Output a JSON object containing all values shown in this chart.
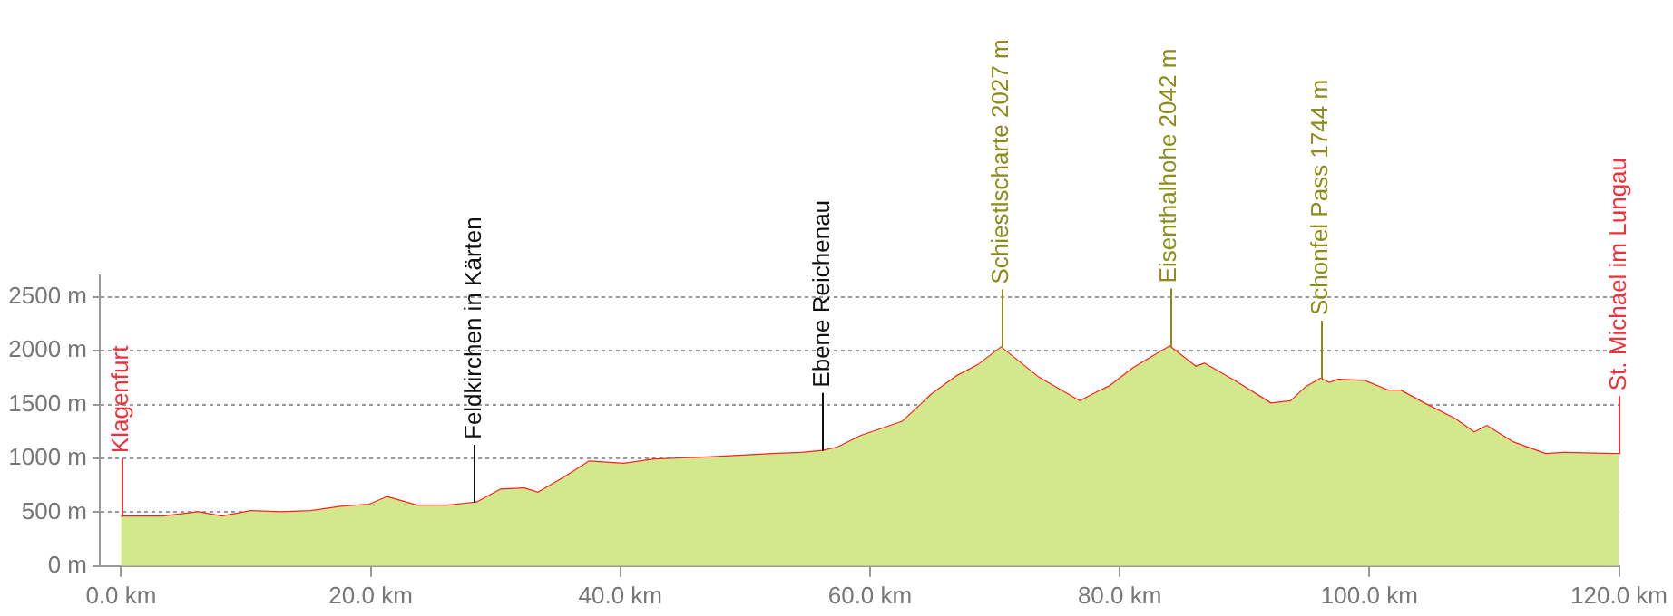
{
  "chart_data": {
    "type": "area",
    "x": [
      0,
      3.3,
      6.2,
      8.1,
      10.4,
      12.8,
      15.2,
      17.6,
      19.9,
      21.3,
      23.7,
      26.1,
      28.5,
      30.4,
      32.3,
      33.4,
      35.6,
      37.5,
      40.3,
      42.7,
      47.4,
      52.2,
      54.5,
      56.2,
      57.4,
      59.3,
      62.6,
      65.0,
      66.9,
      68.7,
      70.5,
      73.5,
      76.8,
      78.3,
      79.2,
      81.1,
      84.0,
      86.1,
      86.8,
      89.2,
      92.1,
      93.7,
      94.9,
      96.1,
      96.8,
      97.5,
      99.6,
      101.5,
      102.5,
      104.4,
      106.8,
      108.4,
      109.4,
      111.5,
      113.4,
      114.1,
      115.6,
      120.0
    ],
    "series": [
      {
        "type": "area",
        "color": "#d2e88c",
        "values": [
          460,
          460,
          500,
          460,
          510,
          500,
          510,
          550,
          570,
          640,
          560,
          560,
          590,
          710,
          720,
          680,
          830,
          970,
          950,
          990,
          1010,
          1040,
          1050,
          1070,
          1100,
          1210,
          1340,
          1600,
          1760,
          1870,
          2030,
          1750,
          1530,
          1620,
          1670,
          1840,
          2040,
          1850,
          1880,
          1720,
          1510,
          1530,
          1660,
          1740,
          1700,
          1730,
          1720,
          1630,
          1630,
          1510,
          1370,
          1240,
          1300,
          1150,
          1070,
          1040,
          1050,
          1040
        ]
      },
      {
        "type": "line",
        "color": "#ff2020",
        "values": [
          460,
          460,
          500,
          460,
          510,
          500,
          510,
          550,
          570,
          640,
          560,
          560,
          590,
          710,
          720,
          680,
          830,
          970,
          950,
          990,
          1010,
          1040,
          1050,
          1070,
          1100,
          1210,
          1340,
          1600,
          1760,
          1870,
          2030,
          1750,
          1530,
          1620,
          1670,
          1840,
          2040,
          1850,
          1880,
          1720,
          1510,
          1530,
          1660,
          1740,
          1700,
          1730,
          1720,
          1630,
          1630,
          1510,
          1370,
          1240,
          1300,
          1150,
          1070,
          1040,
          1050,
          1040
        ]
      }
    ],
    "xlim": [
      -1.7,
      120
    ],
    "xticks": [
      {
        "value": 0,
        "label": "0.0 km"
      },
      {
        "value": 20,
        "label": "20.0 km"
      },
      {
        "value": 40,
        "label": "40.0 km"
      },
      {
        "value": 60,
        "label": "60.0 km"
      },
      {
        "value": 80,
        "label": "80.0 km"
      },
      {
        "value": 100,
        "label": "100.0 km"
      },
      {
        "value": 120,
        "label": "120.0 km"
      }
    ],
    "ylim": [
      0,
      2700
    ],
    "yticks": [
      {
        "value": 0,
        "label": "0 m"
      },
      {
        "value": 500,
        "label": "500 m"
      },
      {
        "value": 1000,
        "label": "1000 m"
      },
      {
        "value": 1500,
        "label": "1500 m"
      },
      {
        "value": 2000,
        "label": "2000 m"
      },
      {
        "value": 2500,
        "label": "2500 m"
      }
    ],
    "grid": "y",
    "ref_lines": [
      {
        "axis": "x",
        "value": 0,
        "label": "Klagenfurt",
        "color": "#f0303a"
      },
      {
        "axis": "x",
        "value": 28.3,
        "label": "Feldkirchen in Kärten",
        "color": "#111111"
      },
      {
        "axis": "x",
        "value": 56.2,
        "label": "Ebene Reichenau",
        "color": "#111111"
      },
      {
        "axis": "x",
        "value": 70.5,
        "label": "Schiestlscharte 2027 m",
        "color": "#8c8c1a"
      },
      {
        "axis": "x",
        "value": 84.0,
        "label": "Eisenthalhohe 2042 m",
        "color": "#8c8c1a"
      },
      {
        "axis": "x",
        "value": 96.1,
        "label": "Schonfel Pass 1744 m",
        "color": "#8c8c1a"
      },
      {
        "axis": "x",
        "value": 120.0,
        "label": "St. Michael im Lungau",
        "color": "#f0303a"
      }
    ]
  }
}
